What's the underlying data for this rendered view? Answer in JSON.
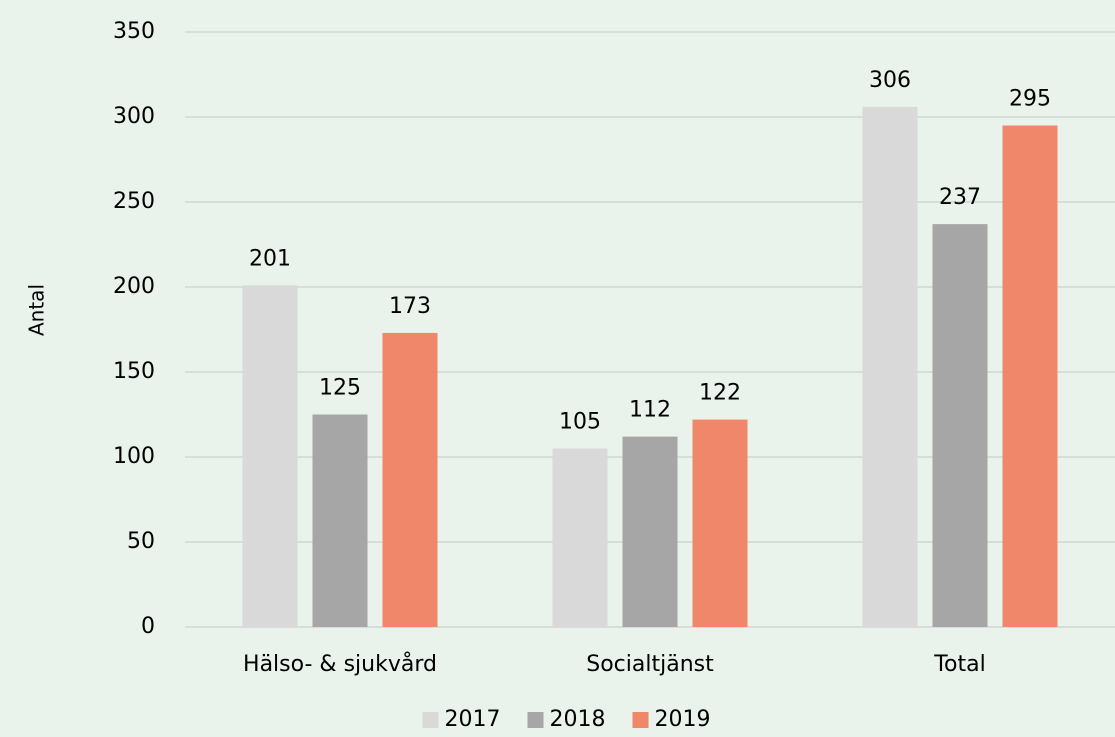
{
  "chart_data": {
    "type": "bar",
    "y_label": "Antal",
    "categories": [
      "Hälso- & sjukvård",
      "Socialtjänst",
      "Total"
    ],
    "series": [
      {
        "name": "2017",
        "color": "#d9d9d9",
        "values": [
          201,
          105,
          306
        ]
      },
      {
        "name": "2018",
        "color": "#a6a6a6",
        "values": [
          125,
          112,
          237
        ]
      },
      {
        "name": "2019",
        "color": "#f0866a",
        "values": [
          173,
          122,
          295
        ]
      }
    ],
    "ylim": [
      0,
      350
    ],
    "yticks": [
      0,
      50,
      100,
      150,
      200,
      250,
      300,
      350
    ],
    "grid": true,
    "legend": "bottom"
  }
}
